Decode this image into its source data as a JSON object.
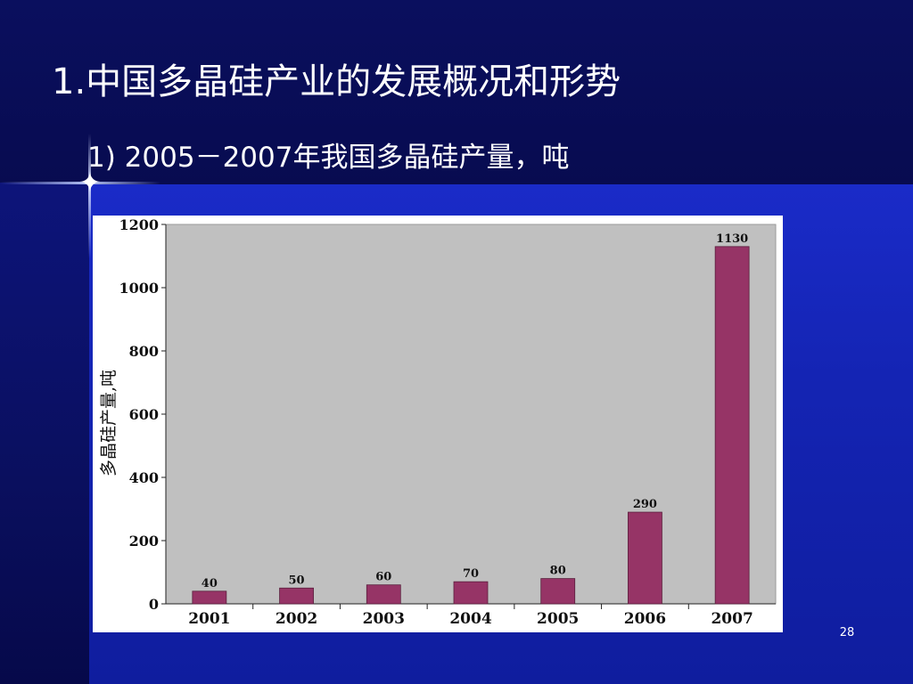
{
  "slide": {
    "title": "1.中国多晶硅产业的发展概况和形势",
    "subtitle": "1) 2005－2007年我国多晶硅产量，吨",
    "page_number": "28"
  },
  "chart_data": {
    "type": "bar",
    "categories": [
      "2001",
      "2002",
      "2003",
      "2004",
      "2005",
      "2006",
      "2007"
    ],
    "values": [
      40,
      50,
      60,
      70,
      80,
      290,
      1130
    ],
    "value_labels": [
      "40",
      "50",
      "60",
      "70",
      "80",
      "290",
      "1130"
    ],
    "ylabel": "多晶硅产量,吨",
    "xlabel": "",
    "ylim": [
      0,
      1200
    ],
    "yticks": [
      0,
      200,
      400,
      600,
      800,
      1000,
      1200
    ],
    "ytick_labels": [
      "0",
      "200",
      "400",
      "600",
      "800",
      "1000",
      "1200"
    ],
    "grid": false,
    "legend": "none",
    "colors": {
      "bar": "#963466",
      "plot_background": "#c0c0c0",
      "frame": "#ffffff",
      "text": "#111111"
    }
  }
}
